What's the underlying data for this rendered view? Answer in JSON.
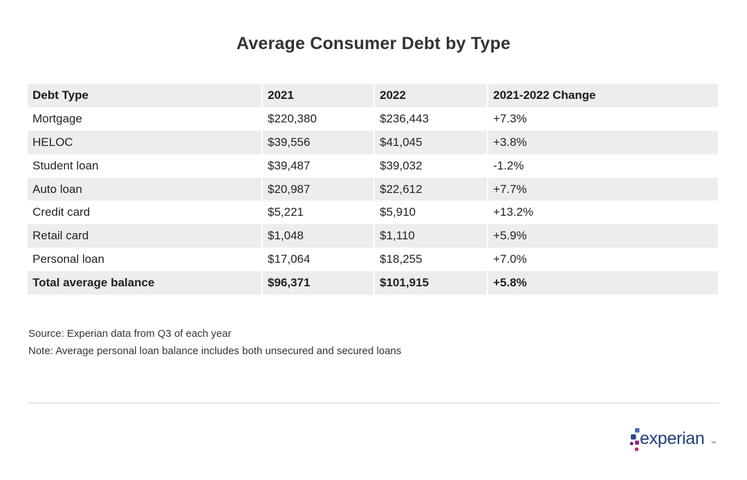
{
  "chart_data": {
    "type": "table",
    "title": "Average Consumer Debt by Type",
    "columns": [
      "Debt Type",
      "2021",
      "2022",
      "2021-2022 Change"
    ],
    "rows": [
      [
        "Mortgage",
        "$220,380",
        "$236,443",
        "+7.3%"
      ],
      [
        "HELOC",
        "$39,556",
        "$41,045",
        "+3.8%"
      ],
      [
        "Student loan",
        "$39,487",
        "$39,032",
        "-1.2%"
      ],
      [
        "Auto loan",
        "$20,987",
        "$22,612",
        "+7.7%"
      ],
      [
        "Credit card",
        "$5,221",
        "$5,910",
        "+13.2%"
      ],
      [
        "Retail card",
        "$1,048",
        "$1,110",
        "+5.9%"
      ],
      [
        "Personal loan",
        "$17,064",
        "$18,255",
        "+7.0%"
      ]
    ],
    "total": [
      "Total average balance",
      "$96,371",
      "$101,915",
      "+5.8%"
    ]
  },
  "notes": {
    "source": "Source: Experian data from Q3 of each year",
    "note": "Note: Average personal loan balance includes both unsecured and secured loans"
  },
  "logo": {
    "text": "experian",
    "colors": [
      "#26478d",
      "#406eb3",
      "#632678",
      "#982881",
      "#ba2f7d"
    ]
  },
  "colors": {
    "shaded_row": "#ededed",
    "divider": "#d4d4d4"
  }
}
